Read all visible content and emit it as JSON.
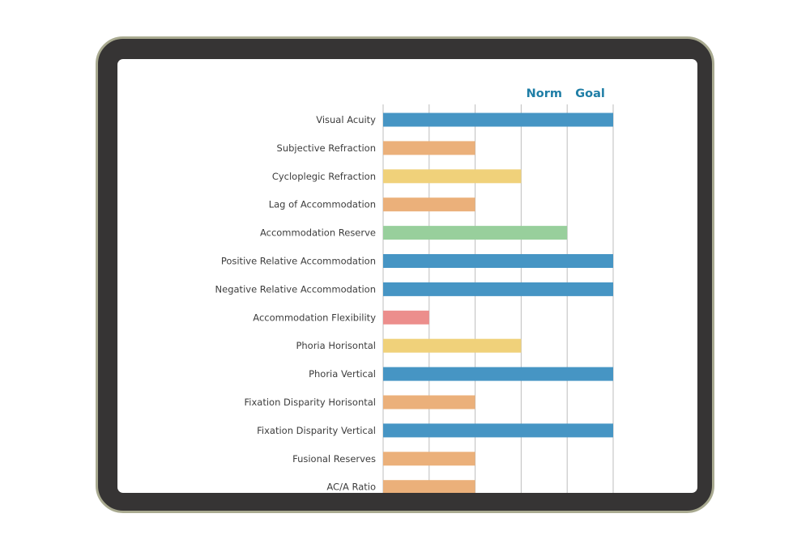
{
  "chart_data": {
    "type": "bar",
    "orientation": "horizontal",
    "column_headers": [
      "Norm",
      "Goal"
    ],
    "xlim": [
      0,
      5
    ],
    "grid": true,
    "categories": [
      "Visual Acuity",
      "Subjective Refraction",
      "Cycloplegic Refraction",
      "Lag of Accommodation",
      "Accommodation Reserve",
      "Positive Relative Accommodation",
      "Negative Relative Accommodation",
      "Accommodation Flexibility",
      "Phoria Horisontal",
      "Phoria Vertical",
      "Fixation Disparity Horisontal",
      "Fixation Disparity Vertical",
      "Fusional Reserves",
      "AC/A Ratio"
    ],
    "values": [
      5,
      2,
      3,
      2,
      4,
      5,
      5,
      1,
      3,
      5,
      2,
      5,
      2,
      2
    ],
    "bar_colors": [
      "#4695c4",
      "#ebb07a",
      "#f0d17a",
      "#ebb07a",
      "#98cf9c",
      "#4695c4",
      "#4695c4",
      "#ec8e8c",
      "#f0d17a",
      "#4695c4",
      "#ebb07a",
      "#4695c4",
      "#ebb07a",
      "#ebb07a"
    ],
    "gridline_color": "#bdbdbd"
  },
  "device": {
    "frame_color": "#363434",
    "bezel_edge_color": "#a9aa90",
    "screen_color": "#ffffff"
  }
}
